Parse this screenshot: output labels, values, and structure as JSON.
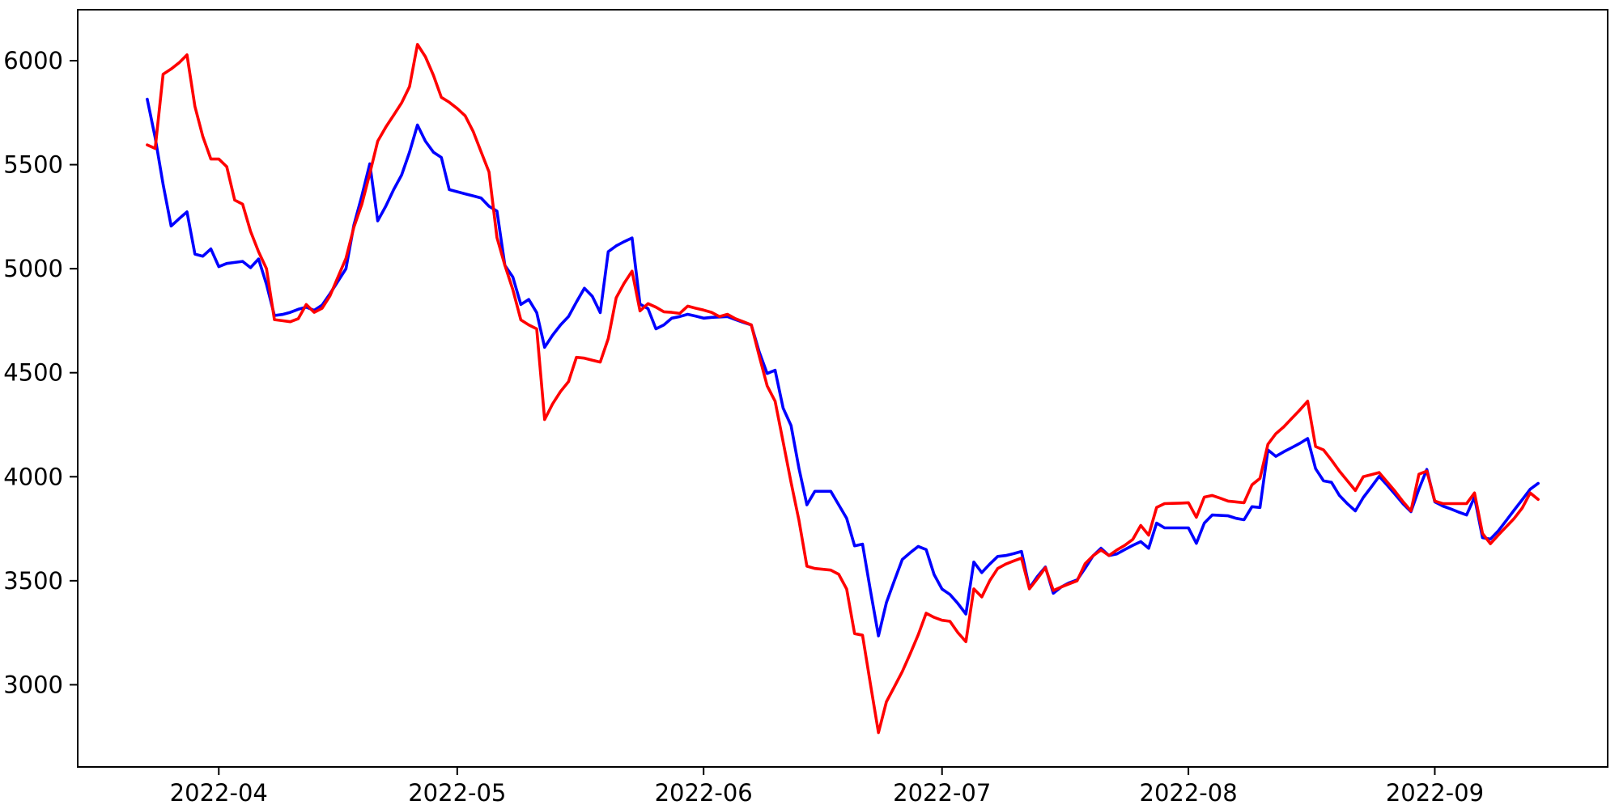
{
  "chart_data": {
    "type": "line",
    "title": "",
    "xlabel": "",
    "ylabel": "",
    "legend": "none",
    "grid": false,
    "background_color": "#ffffff",
    "spine_color": "#000000",
    "tick_label_color": "#000000",
    "start_date": "2022-03-23",
    "end_date": "2022-09-14",
    "frequency": "daily",
    "ylim": [
      2605,
      6245
    ],
    "x_margin_fraction": 0.05,
    "yticks": [
      3000,
      3500,
      4000,
      4500,
      5000,
      5500,
      6000
    ],
    "xticks": [
      {
        "label": "2022-04",
        "date": "2022-04-01"
      },
      {
        "label": "2022-05",
        "date": "2022-05-01"
      },
      {
        "label": "2022-06",
        "date": "2022-06-01"
      },
      {
        "label": "2022-07",
        "date": "2022-07-01"
      },
      {
        "label": "2022-08",
        "date": "2022-08-01"
      },
      {
        "label": "2022-09",
        "date": "2022-09-01"
      }
    ],
    "series": [
      {
        "name": "blue-line",
        "color": "#0000ff",
        "values": [
          5815,
          5630,
          5405,
          5205,
          5240,
          5273,
          5070,
          5060,
          5095,
          5010,
          5025,
          5030,
          5035,
          5005,
          5047,
          4925,
          4775,
          4780,
          4790,
          4805,
          4815,
          4800,
          4825,
          4880,
          4940,
          5000,
          5210,
          5350,
          5504,
          5230,
          5300,
          5380,
          5450,
          5560,
          5691,
          5613,
          5560,
          5535,
          5380,
          5370,
          5360,
          5350,
          5340,
          5300,
          5277,
          5016,
          4960,
          4828,
          4852,
          4789,
          4622,
          4680,
          4730,
          4770,
          4840,
          4906,
          4867,
          4789,
          5082,
          5110,
          5130,
          5148,
          4830,
          4808,
          4711,
          4730,
          4762,
          4770,
          4781,
          4772,
          4762,
          4766,
          4768,
          4770,
          4755,
          4742,
          4730,
          4600,
          4496,
          4512,
          4330,
          4246,
          4040,
          3865,
          3930,
          3930,
          3930,
          3865,
          3800,
          3668,
          3676,
          3450,
          3235,
          3395,
          3500,
          3602,
          3635,
          3665,
          3650,
          3530,
          3460,
          3434,
          3390,
          3340,
          3590,
          3539,
          3580,
          3617,
          3621,
          3630,
          3641,
          3465,
          3520,
          3566,
          3440,
          3470,
          3490,
          3504,
          3560,
          3620,
          3656,
          3621,
          3629,
          3650,
          3670,
          3688,
          3656,
          3777,
          3754,
          3754,
          3754,
          3754,
          3680,
          3777,
          3816,
          3814,
          3812,
          3800,
          3793,
          3856,
          3852,
          4129,
          4098,
          4120,
          4140,
          4160,
          4184,
          4039,
          3980,
          3973,
          3910,
          3870,
          3836,
          3900,
          3950,
          4002,
          3960,
          3915,
          3870,
          3832,
          3940,
          4035,
          3879,
          3859,
          3845,
          3830,
          3816,
          3902,
          3707,
          3700,
          3740,
          3790,
          3840,
          3890,
          3940,
          3968
        ]
      },
      {
        "name": "red-line",
        "color": "#ff0000",
        "values": [
          5595,
          5578,
          5935,
          5960,
          5990,
          6028,
          5780,
          5635,
          5527,
          5527,
          5490,
          5330,
          5310,
          5180,
          5082,
          5000,
          4755,
          4750,
          4745,
          4760,
          4828,
          4790,
          4810,
          4870,
          4960,
          5050,
          5200,
          5310,
          5457,
          5613,
          5680,
          5738,
          5797,
          5875,
          6078,
          6019,
          5930,
          5824,
          5800,
          5770,
          5735,
          5660,
          5562,
          5465,
          5150,
          5016,
          4900,
          4754,
          4730,
          4711,
          4275,
          4350,
          4410,
          4457,
          4574,
          4570,
          4560,
          4551,
          4664,
          4860,
          4930,
          4988,
          4797,
          4832,
          4815,
          4793,
          4790,
          4785,
          4820,
          4810,
          4801,
          4790,
          4770,
          4781,
          4760,
          4745,
          4730,
          4580,
          4437,
          4363,
          4168,
          3973,
          3790,
          3570,
          3559,
          3555,
          3551,
          3531,
          3460,
          3246,
          3238,
          3000,
          2770,
          2918,
          2990,
          3063,
          3150,
          3240,
          3344,
          3324,
          3310,
          3305,
          3250,
          3207,
          3461,
          3422,
          3500,
          3559,
          3580,
          3595,
          3609,
          3461,
          3510,
          3563,
          3453,
          3470,
          3485,
          3500,
          3582,
          3620,
          3648,
          3621,
          3648,
          3670,
          3699,
          3766,
          3719,
          3852,
          3871,
          3872,
          3873,
          3875,
          3805,
          3902,
          3910,
          3897,
          3883,
          3879,
          3875,
          3961,
          3992,
          4156,
          4207,
          4240,
          4280,
          4320,
          4363,
          4145,
          4129,
          4080,
          4027,
          3980,
          3934,
          4000,
          4010,
          4020,
          3975,
          3930,
          3880,
          3836,
          4012,
          4027,
          3883,
          3871,
          3871,
          3871,
          3871,
          3922,
          3727,
          3678,
          3720,
          3760,
          3800,
          3850,
          3922,
          3891
        ]
      }
    ]
  }
}
